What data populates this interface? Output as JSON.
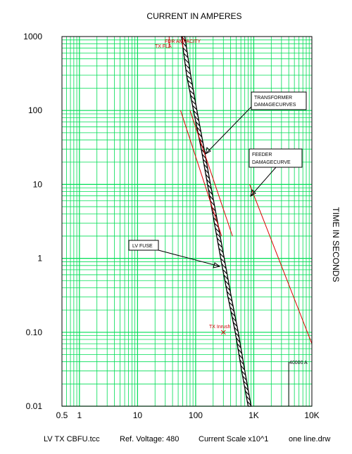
{
  "chart_data": {
    "type": "line",
    "title": "CURRENT IN AMPERES",
    "xlabel": "",
    "ylabel": "TIME IN SECONDS",
    "x_scale": "log",
    "y_scale": "log",
    "xlim": [
      0.5,
      10000
    ],
    "ylim": [
      0.01,
      1000
    ],
    "grid": true,
    "x_tick_labels": [
      {
        "value": 0.5,
        "label": "0.5"
      },
      {
        "value": 1,
        "label": "1"
      },
      {
        "value": 10,
        "label": "10"
      },
      {
        "value": 100,
        "label": "100"
      },
      {
        "value": 1000,
        "label": "1K"
      },
      {
        "value": 10000,
        "label": "10K"
      }
    ],
    "y_tick_labels": [
      {
        "value": 1000,
        "label": "1000"
      },
      {
        "value": 100,
        "label": "100"
      },
      {
        "value": 10,
        "label": "10"
      },
      {
        "value": 1,
        "label": "1"
      },
      {
        "value": 0.1,
        "label": "0.10"
      },
      {
        "value": 0.01,
        "label": "0.01"
      }
    ],
    "series": [
      {
        "name": "LV FUSE",
        "kind": "band",
        "color": "#000000",
        "left": [
          [
            57,
            1000
          ],
          [
            70,
            300
          ],
          [
            92,
            100
          ],
          [
            125,
            30
          ],
          [
            160,
            10
          ],
          [
            210,
            3
          ],
          [
            270,
            1
          ],
          [
            360,
            0.3
          ],
          [
            480,
            0.1
          ],
          [
            620,
            0.03
          ],
          [
            800,
            0.01
          ]
        ],
        "right": [
          [
            65,
            1000
          ],
          [
            82,
            300
          ],
          [
            105,
            100
          ],
          [
            140,
            30
          ],
          [
            180,
            10
          ],
          [
            240,
            3
          ],
          [
            310,
            1
          ],
          [
            410,
            0.3
          ],
          [
            540,
            0.1
          ],
          [
            700,
            0.03
          ],
          [
            900,
            0.01
          ]
        ]
      },
      {
        "name": "TRANSFORMER DAMAGE CURVES",
        "kind": "segments",
        "color": "#dd0000",
        "segments": [
          [
            [
              55,
              100
            ],
            [
              280,
              2
            ]
          ],
          [
            [
              80,
              100
            ],
            [
              430,
              2
            ]
          ]
        ]
      },
      {
        "name": "FEEDER DAMAGE CURVE",
        "kind": "segments",
        "color": "#dd0000",
        "segments": [
          [
            [
              850,
              10
            ],
            [
              10000,
              0.07
            ]
          ]
        ]
      }
    ],
    "markers": [
      {
        "name": "TX FLA",
        "x": 60,
        "y_top": 1000,
        "y_bottom": 700,
        "color": "#cc0000"
      },
      {
        "name": "FDR AMPACITY",
        "x": 35,
        "y_top": 1000,
        "y_bottom": 700,
        "color": "#cc0000"
      },
      {
        "name": "TX Inrush",
        "x": 300,
        "y": 0.1,
        "color": "#cc0000"
      },
      {
        "name": "40000 A",
        "x": 4000,
        "y_top": 0.04,
        "y_bottom": 0.01,
        "color": "#000000"
      }
    ],
    "annotations": {
      "transformer_damage": [
        "TRANSFORMER",
        "DAMAGECURVES"
      ],
      "feeder_damage": [
        "FEEDER",
        "DAMAGECURVE"
      ],
      "lv_fuse": [
        "LV FUSE"
      ],
      "tx_fla": "TX FLA",
      "fdr_ampacity": "FDR AMPACITY",
      "tx_inrush": "TX Inrush",
      "fault_current": "40000 A"
    }
  },
  "footer": {
    "file": "LV TX CBFU.tcc",
    "ref_voltage": "Ref. Voltage: 480",
    "current_scale": "Current Scale x10^1",
    "drawing": "one line.drw"
  },
  "colors": {
    "grid": "#00dd55",
    "plot_border": "#000000",
    "curve_red": "#dd0000",
    "fuse_band": "#000000"
  }
}
